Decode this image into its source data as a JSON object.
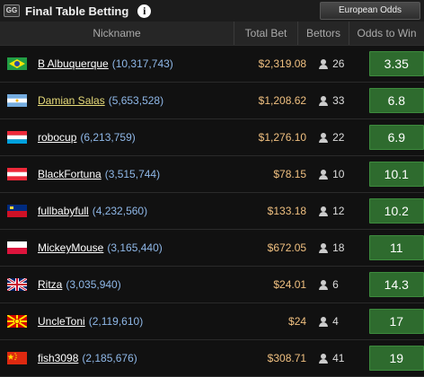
{
  "header": {
    "logo_text": "GG",
    "title": "Final Table Betting",
    "info_icon": "info-icon",
    "odds_format": "European Odds"
  },
  "columns": {
    "nickname": "Nickname",
    "total_bet": "Total Bet",
    "bettors": "Bettors",
    "odds": "Odds to Win"
  },
  "rows": [
    {
      "flag": "brazil",
      "nickname": "B Albuquerque",
      "count": "(10,317,743)",
      "total_bet": "$2,319.08",
      "bettors": "26",
      "odds": "3.35",
      "highlight": false
    },
    {
      "flag": "argentina",
      "nickname": "Damian Salas",
      "count": "(5,653,528)",
      "total_bet": "$1,208.62",
      "bettors": "33",
      "odds": "6.8",
      "highlight": true
    },
    {
      "flag": "luxembourg",
      "nickname": "robocup",
      "count": "(6,213,759)",
      "total_bet": "$1,276.10",
      "bettors": "22",
      "odds": "6.9",
      "highlight": false
    },
    {
      "flag": "austria",
      "nickname": "BlackFortuna",
      "count": "(3,515,744)",
      "total_bet": "$78.15",
      "bettors": "10",
      "odds": "10.1",
      "highlight": false
    },
    {
      "flag": "liechtenstein",
      "nickname": "fullbabyfull",
      "count": "(4,232,560)",
      "total_bet": "$133.18",
      "bettors": "12",
      "odds": "10.2",
      "highlight": false
    },
    {
      "flag": "poland",
      "nickname": "MickeyMouse",
      "count": "(3,165,440)",
      "total_bet": "$672.05",
      "bettors": "18",
      "odds": "11",
      "highlight": false
    },
    {
      "flag": "united-kingdom",
      "nickname": "Ritza",
      "count": "(3,035,940)",
      "total_bet": "$24.01",
      "bettors": "6",
      "odds": "14.3",
      "highlight": false
    },
    {
      "flag": "north-macedonia",
      "nickname": "UncleToni",
      "count": "(2,119,610)",
      "total_bet": "$24",
      "bettors": "4",
      "odds": "17",
      "highlight": false
    },
    {
      "flag": "china",
      "nickname": "fish3098",
      "count": "(2,185,676)",
      "total_bet": "$308.71",
      "bettors": "41",
      "odds": "19",
      "highlight": false
    }
  ]
}
